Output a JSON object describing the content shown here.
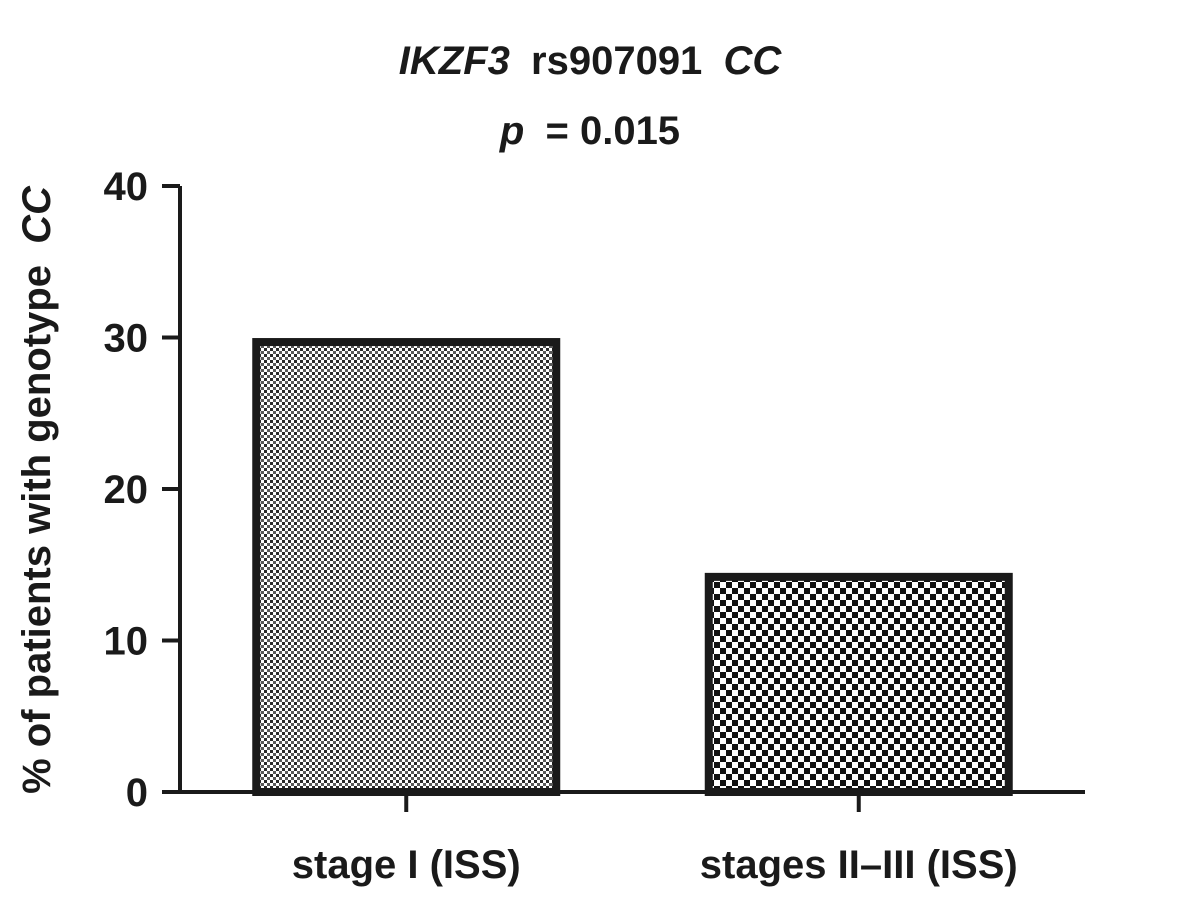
{
  "chart_data": {
    "type": "bar",
    "title": {
      "gene": "IKZF3",
      "snp": "rs907091",
      "genotype": "CC",
      "p_symbol": "p",
      "p_value": "= 0.015"
    },
    "ylabel": {
      "text": "% of patients with genotype",
      "genotype": "CC"
    },
    "xlabel": "",
    "categories": [
      "stage I (ISS)",
      "stages II–III (ISS)"
    ],
    "values": [
      29.7,
      14.2
    ],
    "ylim": [
      0,
      40
    ],
    "yticks": [
      0,
      10,
      20,
      30,
      40
    ],
    "grid": false,
    "legend": "none",
    "bar_patterns": [
      "fine-stipple",
      "coarse-checker"
    ],
    "colors": {
      "ink": "#1a1a1a",
      "background": "#ffffff"
    }
  }
}
